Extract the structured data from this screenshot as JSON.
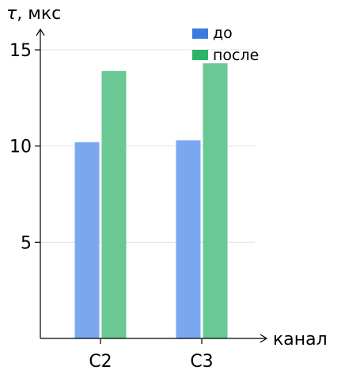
{
  "chart_data": {
    "type": "bar",
    "ylabel_var": "τ",
    "ylabel_unit": ", мкс",
    "xlabel": "канал",
    "categories": [
      "C2",
      "C3"
    ],
    "series": [
      {
        "name": "до",
        "color": "#7aa8f0",
        "legend_color": "#3b7be0",
        "values": [
          10.2,
          10.3
        ]
      },
      {
        "name": "после",
        "color": "#69c893",
        "legend_color": "#2fb36a",
        "values": [
          13.9,
          14.3
        ]
      }
    ],
    "yticks": [
      5,
      10,
      15
    ],
    "ylim": [
      0,
      16
    ],
    "grid": true,
    "legend_position": "top-right"
  }
}
